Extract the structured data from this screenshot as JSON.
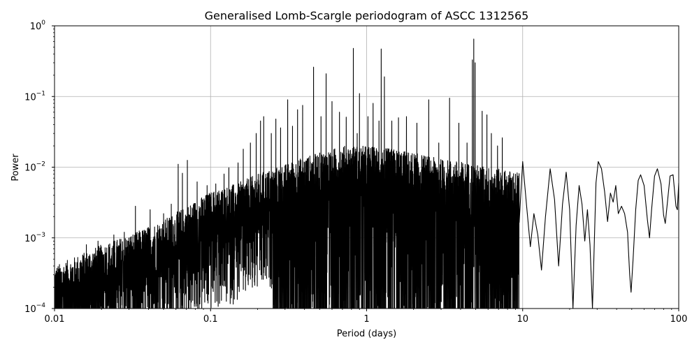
{
  "chart_data": {
    "type": "line",
    "title": "Generalised Lomb-Scargle periodogram of ASCC 1312565",
    "xlabel": "Period (days)",
    "ylabel": "Power",
    "xscale": "log",
    "yscale": "log",
    "xlim": [
      0.01,
      100
    ],
    "ylim": [
      0.0001,
      1
    ],
    "grid": true,
    "x_ticks": [
      {
        "value": 0.01,
        "label": "0.01"
      },
      {
        "value": 0.1,
        "label": "0.1"
      },
      {
        "value": 1,
        "label": "1"
      },
      {
        "value": 10,
        "label": "10"
      },
      {
        "value": 100,
        "label": "100"
      }
    ],
    "y_ticks": [
      {
        "value": 0.0001,
        "base": "10",
        "exp": "−4"
      },
      {
        "value": 0.001,
        "base": "10",
        "exp": "−3"
      },
      {
        "value": 0.01,
        "base": "10",
        "exp": "−2"
      },
      {
        "value": 0.1,
        "base": "10",
        "exp": "−1"
      },
      {
        "value": 1,
        "base": "10",
        "exp": "0"
      }
    ],
    "series": [
      {
        "color": "#000000",
        "envelope": [
          [
            0.01,
            0.0004
          ],
          [
            0.015,
            0.0006
          ],
          [
            0.02,
            0.0008
          ],
          [
            0.03,
            0.0011
          ],
          [
            0.05,
            0.0018
          ],
          [
            0.07,
            0.0028
          ],
          [
            0.1,
            0.0045
          ],
          [
            0.15,
            0.006
          ],
          [
            0.2,
            0.008
          ],
          [
            0.3,
            0.011
          ],
          [
            0.4,
            0.014
          ],
          [
            0.5,
            0.016
          ],
          [
            0.7,
            0.02
          ],
          [
            1.0,
            0.02
          ],
          [
            1.5,
            0.018
          ],
          [
            2.0,
            0.016
          ],
          [
            3.0,
            0.013
          ],
          [
            4.0,
            0.012
          ],
          [
            6.0,
            0.01
          ],
          [
            8.0,
            0.009
          ],
          [
            12.0,
            0.008
          ]
        ],
        "peaks": [
          [
            0.016,
            0.0008
          ],
          [
            0.019,
            0.0009
          ],
          [
            0.024,
            0.0011
          ],
          [
            0.028,
            0.0012
          ],
          [
            0.033,
            0.0028
          ],
          [
            0.041,
            0.0025
          ],
          [
            0.05,
            0.0022
          ],
          [
            0.056,
            0.003
          ],
          [
            0.062,
            0.011
          ],
          [
            0.066,
            0.0082
          ],
          [
            0.071,
            0.0125
          ],
          [
            0.082,
            0.0062
          ],
          [
            0.095,
            0.0055
          ],
          [
            0.108,
            0.0058
          ],
          [
            0.122,
            0.008
          ],
          [
            0.131,
            0.0098
          ],
          [
            0.15,
            0.0115
          ],
          [
            0.162,
            0.018
          ],
          [
            0.18,
            0.022
          ],
          [
            0.196,
            0.03
          ],
          [
            0.209,
            0.045
          ],
          [
            0.219,
            0.052
          ],
          [
            0.245,
            0.03
          ],
          [
            0.262,
            0.048
          ],
          [
            0.281,
            0.036
          ],
          [
            0.312,
            0.09
          ],
          [
            0.335,
            0.038
          ],
          [
            0.361,
            0.065
          ],
          [
            0.389,
            0.075
          ],
          [
            0.457,
            0.26
          ],
          [
            0.51,
            0.052
          ],
          [
            0.55,
            0.21
          ],
          [
            0.6,
            0.085
          ],
          [
            0.67,
            0.06
          ],
          [
            0.74,
            0.051
          ],
          [
            0.822,
            0.48
          ],
          [
            0.87,
            0.03
          ],
          [
            0.9,
            0.11
          ],
          [
            1.02,
            0.052
          ],
          [
            1.1,
            0.08
          ],
          [
            1.2,
            0.045
          ],
          [
            1.24,
            0.47
          ],
          [
            1.3,
            0.19
          ],
          [
            1.45,
            0.045
          ],
          [
            1.6,
            0.05
          ],
          [
            1.8,
            0.052
          ],
          [
            2.1,
            0.042
          ],
          [
            2.5,
            0.09
          ],
          [
            2.9,
            0.022
          ],
          [
            3.4,
            0.095
          ],
          [
            3.9,
            0.042
          ],
          [
            4.4,
            0.022
          ],
          [
            4.76,
            0.33
          ],
          [
            4.86,
            0.65
          ],
          [
            4.96,
            0.3
          ],
          [
            5.5,
            0.062
          ],
          [
            5.9,
            0.055
          ],
          [
            6.3,
            0.03
          ],
          [
            6.9,
            0.02
          ],
          [
            7.4,
            0.026
          ]
        ],
        "tail": [
          [
            10,
            0.012
          ],
          [
            10.6,
            0.0028
          ],
          [
            11.2,
            0.00075
          ],
          [
            11.8,
            0.0022
          ],
          [
            12.5,
            0.0011
          ],
          [
            13.2,
            0.00035
          ],
          [
            14.0,
            0.002
          ],
          [
            15.0,
            0.0095
          ],
          [
            16.0,
            0.0035
          ],
          [
            17.0,
            0.0004
          ],
          [
            18.0,
            0.003
          ],
          [
            19.0,
            0.0085
          ],
          [
            20.0,
            0.0025
          ],
          [
            21.0,
            0.0001
          ],
          [
            22.0,
            0.0015
          ],
          [
            23.0,
            0.0055
          ],
          [
            24.0,
            0.003
          ],
          [
            25.0,
            0.0009
          ],
          [
            26.0,
            0.0025
          ],
          [
            27.0,
            0.0008
          ],
          [
            28.0,
            0.0001
          ],
          [
            29.5,
            0.006
          ],
          [
            30.5,
            0.012
          ],
          [
            32.0,
            0.0095
          ],
          [
            33.5,
            0.0045
          ],
          [
            35.0,
            0.0017
          ],
          [
            36.5,
            0.0043
          ],
          [
            38.0,
            0.0032
          ],
          [
            39.5,
            0.0055
          ],
          [
            41.0,
            0.0022
          ],
          [
            43.0,
            0.0028
          ],
          [
            45.0,
            0.0022
          ],
          [
            47.0,
            0.0012
          ],
          [
            48.5,
            0.0003
          ],
          [
            49.5,
            0.00017
          ],
          [
            51.0,
            0.0005
          ],
          [
            53.0,
            0.0025
          ],
          [
            55.0,
            0.0065
          ],
          [
            57.0,
            0.0078
          ],
          [
            60.0,
            0.0055
          ],
          [
            63.0,
            0.0018
          ],
          [
            65.0,
            0.001
          ],
          [
            67.0,
            0.0025
          ],
          [
            70.0,
            0.0075
          ],
          [
            73.0,
            0.0095
          ],
          [
            77.0,
            0.0058
          ],
          [
            80.0,
            0.0021
          ],
          [
            82.0,
            0.0016
          ],
          [
            85.0,
            0.0035
          ],
          [
            88.0,
            0.0075
          ],
          [
            92.0,
            0.0078
          ],
          [
            96.0,
            0.0028
          ],
          [
            98.0,
            0.0025
          ],
          [
            100,
            0.006
          ]
        ]
      }
    ]
  }
}
